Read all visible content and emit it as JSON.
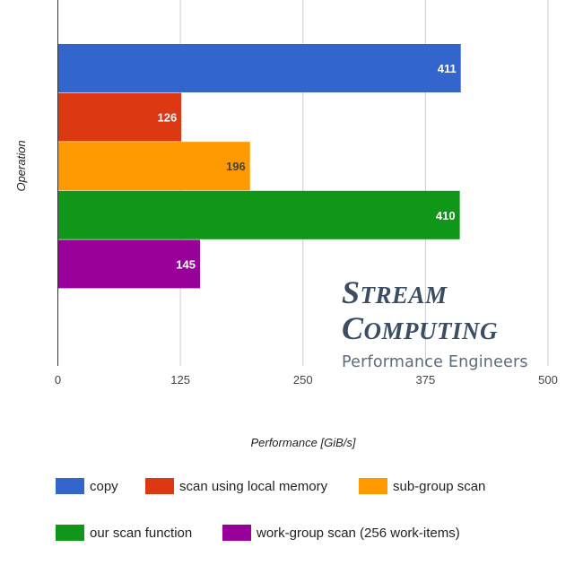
{
  "chart_data": {
    "type": "bar",
    "orientation": "horizontal",
    "title": "",
    "xlabel": "Performance [GiB/s]",
    "ylabel": "Operation",
    "xlim": [
      0,
      500
    ],
    "xticks": [
      "0",
      "125",
      "250",
      "375",
      "500"
    ],
    "grid": true,
    "legend_position": "bottom",
    "series": [
      {
        "name": "copy",
        "value": 411,
        "label": "411",
        "color": "#3366cc",
        "label_color": "#ffffff"
      },
      {
        "name": "scan using local memory",
        "value": 126,
        "label": "126",
        "color": "#dc3912",
        "label_color": "#ffffff"
      },
      {
        "name": "sub-group scan",
        "value": 196,
        "label": "196",
        "color": "#ff9900",
        "label_color": "#444444"
      },
      {
        "name": "our scan function",
        "value": 410,
        "label": "410",
        "color": "#109618",
        "label_color": "#ffffff"
      },
      {
        "name": "work-group scan (256 work-items)",
        "value": 145,
        "label": "145",
        "color": "#990099",
        "label_color": "#ffffff"
      }
    ]
  },
  "logo": {
    "line1_initial": "S",
    "line1_rest": "TREAM",
    "line2_initial": "C",
    "line2_rest": "OMPUTING",
    "tagline": "Performance Engineers"
  }
}
